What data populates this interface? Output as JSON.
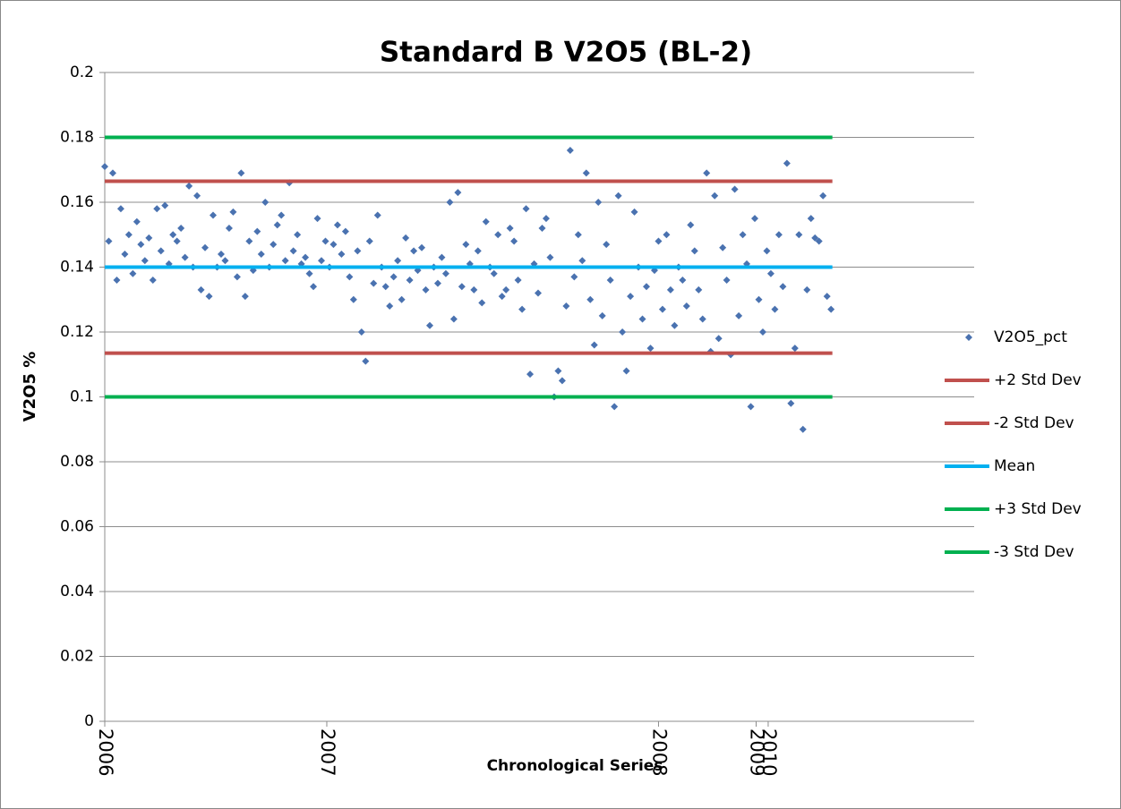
{
  "chart_data": {
    "type": "scatter",
    "title": "Standard B V2O5 (BL-2)",
    "x_label": "Chronological Series",
    "y_label": "V2O5 %",
    "xlim": [
      0,
      650
    ],
    "xticks": [
      {
        "value": 0,
        "label": "2006"
      },
      {
        "value": 166,
        "label": "2007"
      },
      {
        "value": 414,
        "label": "2008"
      },
      {
        "value": 487,
        "label": "2009"
      },
      {
        "value": 496,
        "label": "2010"
      }
    ],
    "ylim": [
      0,
      0.2
    ],
    "yticks": [
      0,
      0.02,
      0.04,
      0.06,
      0.08,
      0.1,
      0.12,
      0.14,
      0.16,
      0.18,
      0.2
    ],
    "grid": true,
    "legend": "right",
    "series": [
      {
        "name": "V2O5_pct",
        "color": "#4a72b0",
        "mode": "markers",
        "x": [
          0,
          3,
          6,
          9,
          12,
          15,
          18,
          21,
          24,
          27,
          30,
          33,
          36,
          39,
          42,
          45,
          48,
          51,
          54,
          57,
          60,
          63,
          66,
          69,
          72,
          75,
          78,
          81,
          84,
          87,
          90,
          93,
          96,
          99,
          102,
          105,
          108,
          111,
          114,
          117,
          120,
          123,
          126,
          129,
          132,
          135,
          138,
          141,
          144,
          147,
          150,
          153,
          156,
          159,
          162,
          165,
          168,
          171,
          174,
          177,
          180,
          183,
          186,
          189,
          192,
          195,
          198,
          201,
          204,
          207,
          210,
          213,
          216,
          219,
          222,
          225,
          228,
          231,
          234,
          237,
          240,
          243,
          246,
          249,
          252,
          255,
          258,
          261,
          264,
          267,
          270,
          273,
          276,
          279,
          282,
          285,
          288,
          291,
          294,
          297,
          300,
          303,
          306,
          309,
          312,
          315,
          318,
          321,
          324,
          327,
          330,
          333,
          336,
          339,
          342,
          345,
          348,
          351,
          354,
          357,
          360,
          363,
          366,
          369,
          372,
          375,
          378,
          381,
          384,
          387,
          390,
          393,
          396,
          399,
          402,
          405,
          408,
          411,
          414,
          417,
          420,
          423,
          426,
          429,
          432,
          435,
          438,
          441,
          444,
          447,
          450,
          453,
          456,
          459,
          462,
          465,
          468,
          471,
          474,
          477,
          480,
          483,
          486,
          489,
          492,
          495,
          498,
          501,
          504,
          507,
          510,
          513,
          516,
          519,
          522,
          525,
          528,
          531,
          534,
          537,
          540,
          543
        ],
        "values": [
          0.171,
          0.148,
          0.169,
          0.136,
          0.158,
          0.144,
          0.15,
          0.138,
          0.154,
          0.147,
          0.142,
          0.149,
          0.136,
          0.158,
          0.145,
          0.159,
          0.141,
          0.15,
          0.148,
          0.152,
          0.143,
          0.165,
          0.14,
          0.162,
          0.133,
          0.146,
          0.131,
          0.156,
          0.14,
          0.144,
          0.142,
          0.152,
          0.157,
          0.137,
          0.169,
          0.131,
          0.148,
          0.139,
          0.151,
          0.144,
          0.16,
          0.14,
          0.147,
          0.153,
          0.156,
          0.142,
          0.166,
          0.145,
          0.15,
          0.141,
          0.143,
          0.138,
          0.134,
          0.155,
          0.142,
          0.148,
          0.14,
          0.147,
          0.153,
          0.144,
          0.151,
          0.137,
          0.13,
          0.145,
          0.12,
          0.111,
          0.148,
          0.135,
          0.156,
          0.14,
          0.134,
          0.128,
          0.137,
          0.142,
          0.13,
          0.149,
          0.136,
          0.145,
          0.139,
          0.146,
          0.133,
          0.122,
          0.14,
          0.135,
          0.143,
          0.138,
          0.16,
          0.124,
          0.163,
          0.134,
          0.147,
          0.141,
          0.133,
          0.145,
          0.129,
          0.154,
          0.14,
          0.138,
          0.15,
          0.131,
          0.133,
          0.152,
          0.148,
          0.136,
          0.127,
          0.158,
          0.107,
          0.141,
          0.132,
          0.152,
          0.155,
          0.143,
          0.1,
          0.108,
          0.105,
          0.128,
          0.176,
          0.137,
          0.15,
          0.142,
          0.169,
          0.13,
          0.116,
          0.16,
          0.125,
          0.147,
          0.136,
          0.097,
          0.162,
          0.12,
          0.108,
          0.131,
          0.157,
          0.14,
          0.124,
          0.134,
          0.115,
          0.139,
          0.148,
          0.127,
          0.15,
          0.133,
          0.122,
          0.14,
          0.136,
          0.128,
          0.153,
          0.145,
          0.133,
          0.124,
          0.169,
          0.114,
          0.162,
          0.118,
          0.146,
          0.136,
          0.113,
          0.164,
          0.125,
          0.15,
          0.141,
          0.097,
          0.155,
          0.13,
          0.12,
          0.145,
          0.138,
          0.127,
          0.15,
          0.134,
          0.172,
          0.098,
          0.115,
          0.15,
          0.09,
          0.133,
          0.155,
          0.149,
          0.148,
          0.162,
          0.131,
          0.127
        ]
      },
      {
        "name": "+2 Std Dev",
        "color": "#c0504d",
        "mode": "line",
        "x": [
          0,
          544
        ],
        "values": [
          0.1665,
          0.1665
        ]
      },
      {
        "name": "-2 Std Dev",
        "color": "#c0504d",
        "mode": "line",
        "x": [
          0,
          544
        ],
        "values": [
          0.1135,
          0.1135
        ]
      },
      {
        "name": "Mean",
        "color": "#00b0f0",
        "mode": "line",
        "x": [
          0,
          544
        ],
        "values": [
          0.14,
          0.14
        ]
      },
      {
        "name": "+3 Std Dev",
        "color": "#00b050",
        "mode": "line",
        "x": [
          0,
          544
        ],
        "values": [
          0.18,
          0.18
        ]
      },
      {
        "name": "-3 Std Dev",
        "color": "#00b050",
        "mode": "line",
        "x": [
          0,
          544
        ],
        "values": [
          0.1,
          0.1
        ]
      }
    ]
  }
}
